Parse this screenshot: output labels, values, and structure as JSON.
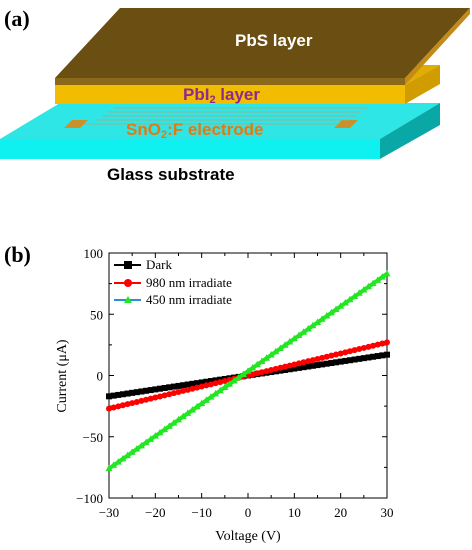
{
  "panel_a": {
    "label": "(a)",
    "layers": {
      "top": "PbS layer",
      "middle_prefix": "PbI",
      "middle_sub": "2",
      "middle_suffix": " layer",
      "electrode_prefix": "SnO",
      "electrode_sub": "2",
      "electrode_suffix": ":F  electrode",
      "substrate": "Glass substrate"
    },
    "colors": {
      "pbs_top": "#6b4e11",
      "pbs_side": "#c28a18",
      "pbi2": "#f2bc00",
      "pbi2_text": "#8e2a8c",
      "electrode_text": "#e07a14",
      "electrode_pad": "#c8912b",
      "glass_top": "#2ee6e6",
      "glass_front": "#0ff0f0",
      "glass_side": "#0aa7a7"
    }
  },
  "panel_b": {
    "label": "(b)",
    "chart_data": {
      "type": "line",
      "xlabel": "Voltage (V)",
      "ylabel": "Current (μA)",
      "xlim": [
        -30,
        30
      ],
      "ylim": [
        -100,
        100
      ],
      "xticks": [
        "−30",
        "−20",
        "−10",
        "0",
        "10",
        "20",
        "30"
      ],
      "yticks": [
        "100",
        "50",
        "0",
        "−50",
        "−100"
      ],
      "legend_position": "top-left",
      "series": [
        {
          "name": "Dark",
          "color": "#000000",
          "marker": "square",
          "x": [
            -30,
            30
          ],
          "y": [
            -17,
            17
          ]
        },
        {
          "name": "980 nm irradiate",
          "color": "#ff0000",
          "marker": "circle",
          "x": [
            -30,
            30
          ],
          "y": [
            -27,
            27
          ]
        },
        {
          "name": "450 nm irradiate",
          "color": "#2c8fd6",
          "line_color": "#22e622",
          "marker": "triangle",
          "x": [
            -30,
            30
          ],
          "y": [
            -76,
            83
          ]
        }
      ]
    }
  }
}
